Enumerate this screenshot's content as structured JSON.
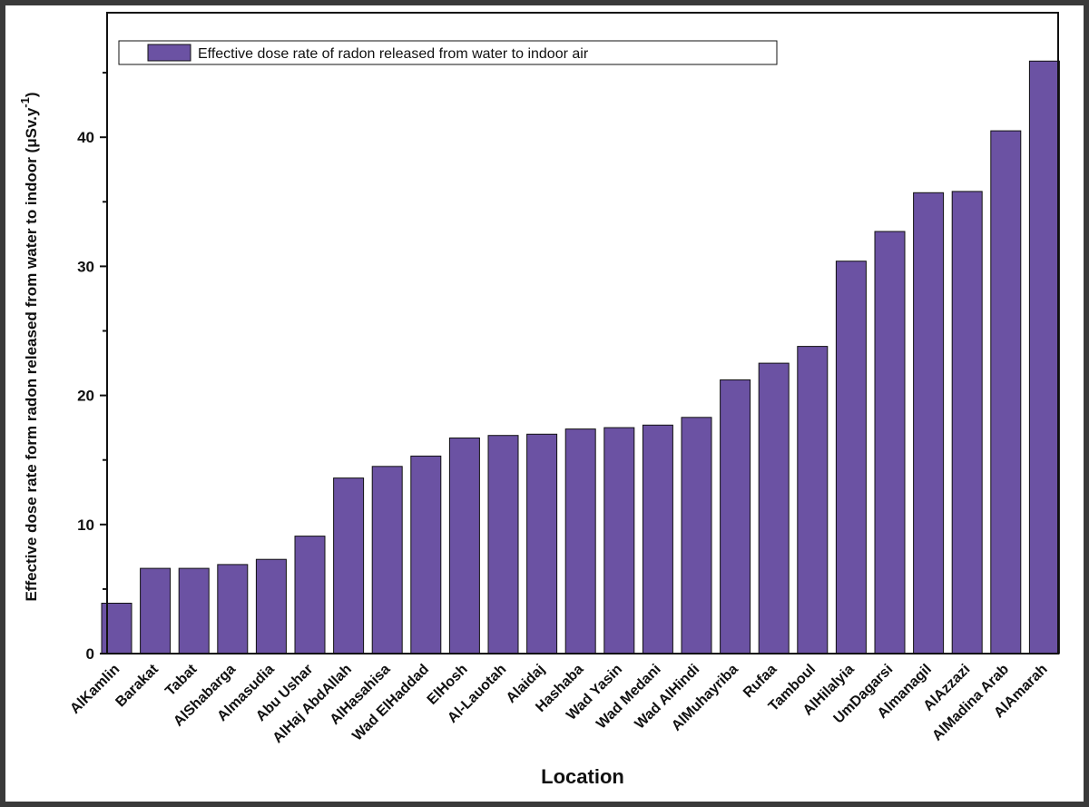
{
  "colors": {
    "bar": "#6b52a3",
    "bar_stroke": "#111111",
    "frame": "#3a3a3a"
  },
  "chart_data": {
    "type": "bar",
    "title": "",
    "xlabel": "Location",
    "ylabel": "Effective dose rate form radon released from water to indoor (μSv.y",
    "ylabel_superscript": "-1",
    "ylabel_suffix": ")",
    "ylim": [
      0,
      47
    ],
    "yticks": [
      0,
      10,
      20,
      30,
      40
    ],
    "grid": false,
    "legend_position": "top-left",
    "series": [
      {
        "name": "Effective dose rate of radon released from water to indoor air",
        "values": [
          3.9,
          6.6,
          6.6,
          6.9,
          7.3,
          9.1,
          13.6,
          14.5,
          15.3,
          16.7,
          16.9,
          17.0,
          17.4,
          17.5,
          17.7,
          18.3,
          21.2,
          22.5,
          23.8,
          30.4,
          32.7,
          35.7,
          35.8,
          40.5,
          45.9
        ]
      }
    ],
    "categories": [
      "AlKamlin",
      "Barakat",
      "Tabat",
      "AlShabarga",
      "Almasudia",
      "Abu Ushar",
      "AlHaj AbdAllah",
      "AlHasahisa",
      "Wad ElHaddad",
      "ElHosh",
      "Al-Lauotah",
      "Alaidaj",
      "Hashaba",
      "Wad Yasin",
      "Wad Medani",
      "Wad AlHindi",
      "AlMuhayriba",
      "Rufaa",
      "Tamboul",
      "AlHilalyia",
      "UmDagarsi",
      "Almanagil",
      "AlAzzazi",
      "AlMadina Arab",
      "AlAmarah"
    ]
  }
}
